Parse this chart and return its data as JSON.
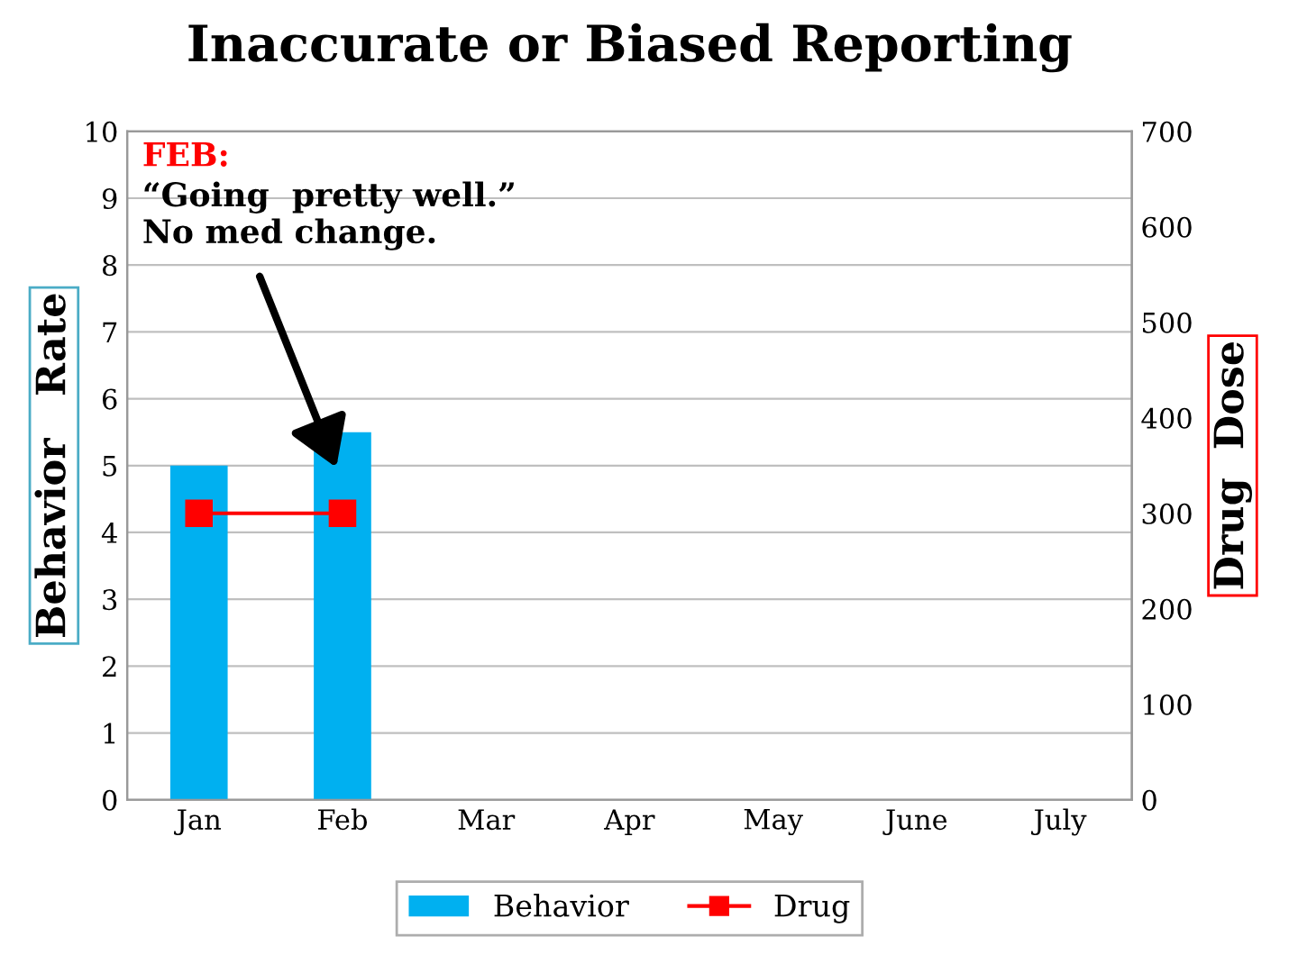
{
  "chart_data": {
    "type": "bar",
    "title": "Inaccurate or Biased Reporting",
    "categories": [
      "Jan",
      "Feb",
      "Mar",
      "Apr",
      "May",
      "June",
      "July"
    ],
    "series": [
      {
        "name": "Behavior",
        "color": "#00b0f0",
        "values": [
          5,
          5.5,
          null,
          null,
          null,
          null,
          null
        ]
      },
      {
        "name": "Drug",
        "type": "line",
        "axis": "y2",
        "color": "#ff0000",
        "marker": "square",
        "values": [
          300,
          300,
          null,
          null,
          null,
          null,
          null
        ]
      }
    ],
    "ylabel": "Behavior   Rate",
    "y2label": "Drug  Dose",
    "ylim": [
      0,
      10
    ],
    "yticks": [
      0,
      1,
      2,
      3,
      4,
      5,
      6,
      7,
      8,
      9,
      10
    ],
    "y2lim": [
      0,
      700
    ],
    "y2ticks": [
      0,
      100,
      200,
      300,
      400,
      500,
      600,
      700
    ],
    "grid": "y",
    "legend": "bottom",
    "annotations": [
      "FEB:",
      "“Going  pretty well.”\nNo med change."
    ]
  }
}
